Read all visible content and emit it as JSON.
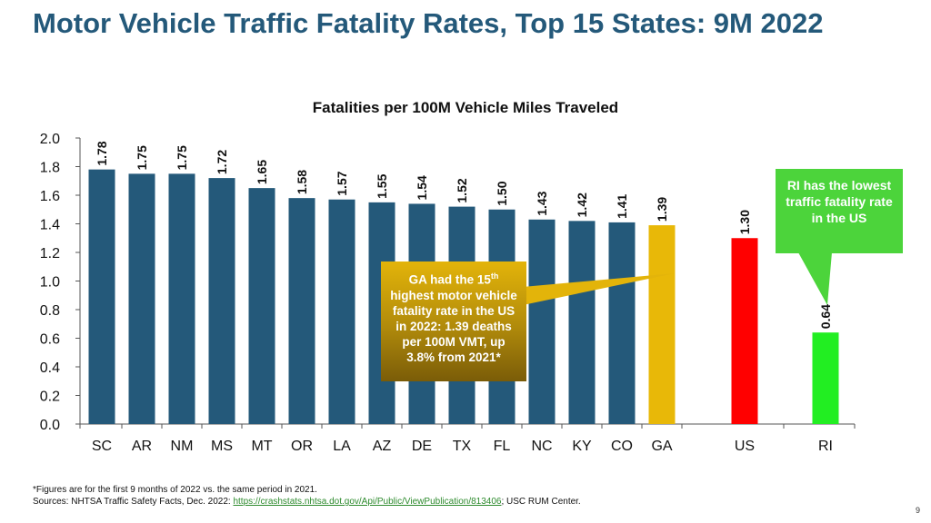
{
  "page": {
    "title": "Motor Vehicle Traffic Fatality Rates, Top 15 States: 9M 2022",
    "page_number": "9"
  },
  "chart_data": {
    "type": "bar",
    "title": "Fatalities per 100M Vehicle Miles Traveled",
    "xlabel": "",
    "ylabel": "",
    "ylim": [
      0,
      2.0
    ],
    "yticks": [
      "0.0",
      "0.2",
      "0.4",
      "0.6",
      "0.8",
      "1.0",
      "1.2",
      "1.4",
      "1.6",
      "1.8",
      "2.0"
    ],
    "categories": [
      "SC",
      "AR",
      "NM",
      "MS",
      "MT",
      "OR",
      "LA",
      "AZ",
      "DE",
      "TX",
      "FL",
      "NC",
      "KY",
      "CO",
      "GA",
      "US",
      "RI"
    ],
    "values": [
      1.78,
      1.75,
      1.75,
      1.72,
      1.65,
      1.58,
      1.57,
      1.55,
      1.54,
      1.52,
      1.5,
      1.43,
      1.42,
      1.41,
      1.39,
      1.3,
      0.64
    ],
    "labels": [
      "1.78",
      "1.75",
      "1.75",
      "1.72",
      "1.65",
      "1.58",
      "1.57",
      "1.55",
      "1.54",
      "1.52",
      "1.50",
      "1.43",
      "1.42",
      "1.41",
      "1.39",
      "1.30",
      "0.64"
    ],
    "colors": {
      "default": "#24597a",
      "GA": "#e8b808",
      "US": "#ff0000",
      "RI": "#22ee22"
    }
  },
  "callouts": {
    "ga_line1": "GA had the 15",
    "ga_sup": "th",
    "ga_line2": "highest motor vehicle fatality rate in the US in 2022: 1.39 deaths per 100M VMT, up 3.8% from 2021*",
    "ri": "RI has the lowest traffic fatality rate in the US"
  },
  "footnote": {
    "line1": "*Figures are for the first 9 months of 2022 vs. the same period in 2021.",
    "sources_prefix": "Sources: NHTSA Traffic Safety Facts, Dec. 2022: ",
    "link": "https://crashstats.nhtsa.dot.gov/Api/Public/ViewPublication/813406",
    "sources_suffix": "; USC RUM Center."
  }
}
